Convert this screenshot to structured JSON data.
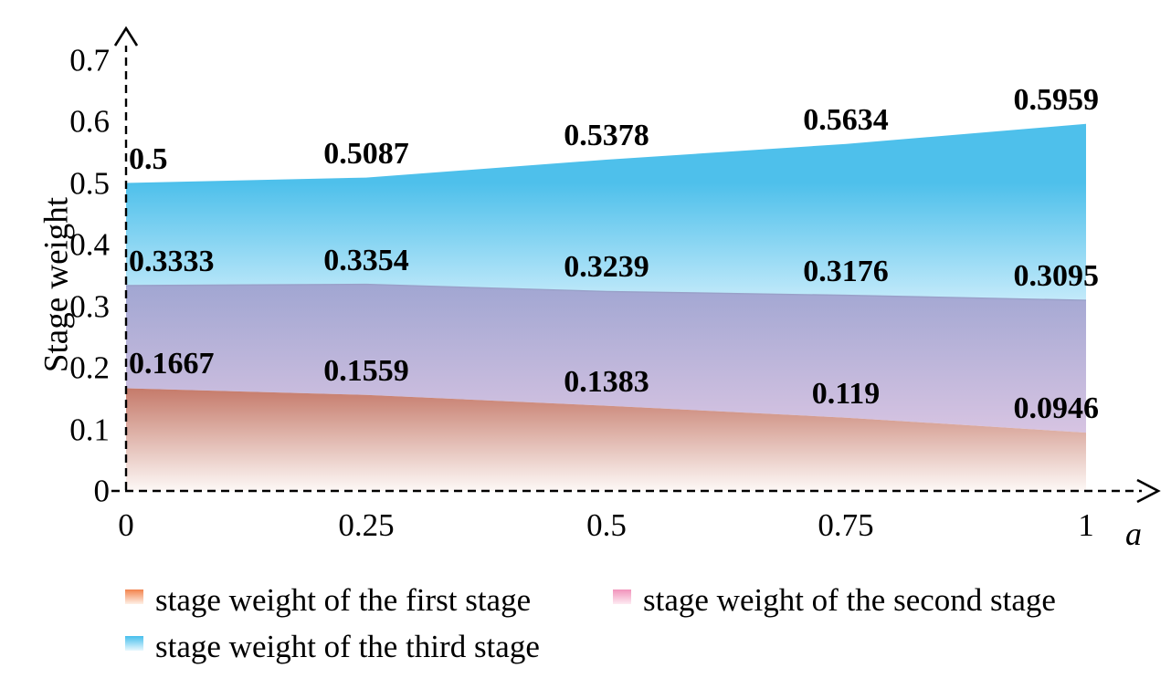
{
  "chart_data": {
    "type": "area",
    "title": "",
    "xlabel": "a",
    "ylabel": "Stage weight",
    "x": [
      0,
      0.25,
      0.5,
      0.75,
      1
    ],
    "x_tick_labels": [
      "0",
      "0.25",
      "0.5",
      "0.75",
      "1"
    ],
    "y_tick_labels": [
      "0",
      "0.1",
      "0.2",
      "0.3",
      "0.4",
      "0.5",
      "0.6",
      "0.7"
    ],
    "y_tick_values": [
      0,
      0.1,
      0.2,
      0.3,
      0.4,
      0.5,
      0.6,
      0.7
    ],
    "xlim": [
      0,
      1
    ],
    "ylim": [
      0,
      0.7
    ],
    "grid": false,
    "legend_position": "bottom",
    "axis_style": "dashed-with-arrows",
    "series": [
      {
        "name": "stage weight of the first stage",
        "values": [
          0.1667,
          0.1559,
          0.1383,
          0.119,
          0.0946
        ],
        "point_labels": [
          "0.1667",
          "0.1559",
          "0.1383",
          "0.119",
          "0.0946"
        ],
        "area_color_top": "#c57a6a",
        "area_color_bottom": "#fdf8f6",
        "swatch_color_top": "#f2834c",
        "swatch_color_bottom": "#fef0e6"
      },
      {
        "name": "stage weight of the second stage",
        "values": [
          0.3333,
          0.3354,
          0.3239,
          0.3176,
          0.3095
        ],
        "point_labels": [
          "0.3333",
          "0.3354",
          "0.3239",
          "0.3176",
          "0.3095"
        ],
        "area_color_top": "#a1a6d2",
        "area_color_bottom": "#d7c4e2",
        "edge_color": "#99a0c8",
        "swatch_color_top": "#f193bb",
        "swatch_color_bottom": "#fdeaf2"
      },
      {
        "name": "stage weight of the third stage",
        "values": [
          0.5,
          0.5087,
          0.5378,
          0.5634,
          0.5959
        ],
        "point_labels": [
          "0.5",
          "0.5087",
          "0.5378",
          "0.5634",
          "0.5959"
        ],
        "area_color_top": "#4ec0eb",
        "area_color_bottom": "#c3eafa",
        "swatch_color_top": "#47bfec",
        "swatch_color_bottom": "#e8f8fe"
      }
    ]
  },
  "colors": {
    "background": "#ffffff",
    "axis": "#000000",
    "text": "#000000"
  }
}
